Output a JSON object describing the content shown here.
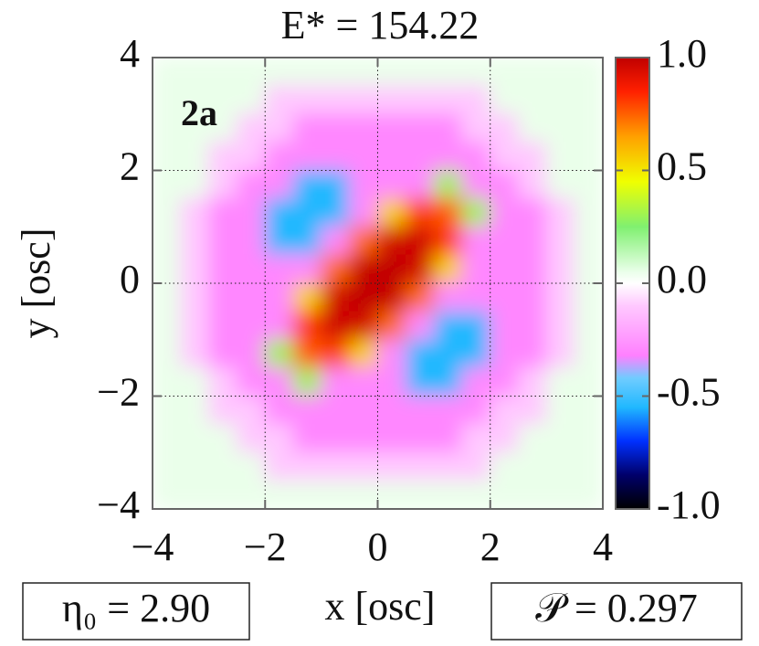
{
  "chart_data": {
    "type": "heatmap",
    "title": "E* = 154.22",
    "panel_label": "2a",
    "xlabel": "x [osc]",
    "ylabel": "y [osc]",
    "annotations": [
      "η₀ = 2.90",
      "𝒫 = 0.297"
    ],
    "xlim": [
      -4,
      4
    ],
    "ylim": [
      -4,
      4
    ],
    "xticks": [
      {
        "value": -4,
        "label": "−4"
      },
      {
        "value": -2,
        "label": "−2"
      },
      0,
      2,
      4
    ],
    "yticks": [
      {
        "value": -4,
        "label": "−4"
      },
      {
        "value": -2,
        "label": "−2"
      },
      0,
      2,
      4
    ],
    "grid": true,
    "clim": [
      -1,
      1
    ],
    "cticks": [
      {
        "value": -1,
        "label": "-1.0"
      },
      {
        "value": -0.5,
        "label": "-0.5"
      },
      {
        "value": 0,
        "label": "0.0"
      },
      {
        "value": 0.5,
        "label": "0.5"
      },
      {
        "value": 1,
        "label": "1.0"
      }
    ],
    "colormap": [
      {
        "value": -1,
        "color": "#000000"
      },
      {
        "value": -0.85,
        "color": "#00006a"
      },
      {
        "value": -0.7,
        "color": "#0030ff"
      },
      {
        "value": -0.55,
        "color": "#20b8ff"
      },
      {
        "value": -0.42,
        "color": "#70ccff"
      },
      {
        "value": -0.32,
        "color": "#ff80ff"
      },
      {
        "value": -0.1,
        "color": "#ffc8ff"
      },
      {
        "value": 0,
        "color": "#ffffff"
      },
      {
        "value": 0.05,
        "color": "#eaffea"
      },
      {
        "value": 0.25,
        "color": "#80f070"
      },
      {
        "value": 0.45,
        "color": "#f0ff00"
      },
      {
        "value": 0.65,
        "color": "#ffa000"
      },
      {
        "value": 0.85,
        "color": "#ff2000"
      },
      {
        "value": 1,
        "color": "#c00000"
      }
    ],
    "x": [
      -3.75,
      -3.25,
      -2.75,
      -2.25,
      -1.75,
      -1.25,
      -0.75,
      -0.25,
      0.25,
      0.75,
      1.25,
      1.75,
      2.25,
      2.75,
      3.25,
      3.75
    ],
    "y": [
      3.75,
      3.25,
      2.75,
      2.25,
      1.75,
      1.25,
      0.75,
      0.25,
      -0.25,
      -0.75,
      -1.25,
      -1.75,
      -2.25,
      -2.75,
      -3.25,
      -3.75
    ],
    "z": [
      [
        0.05,
        0.05,
        0.05,
        0.05,
        0.05,
        0.05,
        0.05,
        0.05,
        0.05,
        0.05,
        0.05,
        0.05,
        0.05,
        0.05,
        0.05,
        0.05
      ],
      [
        0.05,
        0.05,
        0.05,
        0.05,
        -0.1,
        -0.1,
        -0.1,
        -0.1,
        -0.1,
        -0.1,
        -0.1,
        -0.1,
        0.05,
        0.05,
        0.05,
        0.05
      ],
      [
        0.05,
        0.05,
        0.05,
        -0.1,
        -0.1,
        -0.3,
        -0.3,
        -0.3,
        -0.3,
        -0.3,
        -0.3,
        -0.1,
        -0.1,
        0.05,
        0.05,
        0.05
      ],
      [
        0.05,
        0.05,
        -0.1,
        -0.1,
        -0.3,
        -0.3,
        -0.3,
        -0.3,
        -0.3,
        -0.3,
        -0.3,
        -0.3,
        -0.1,
        -0.1,
        0.05,
        0.05
      ],
      [
        0.05,
        0.05,
        -0.1,
        -0.3,
        -0.3,
        -0.55,
        -0.55,
        -0.3,
        -0.3,
        -0.3,
        0.3,
        -0.3,
        -0.3,
        -0.1,
        0.05,
        0.05
      ],
      [
        0.05,
        -0.1,
        -0.3,
        -0.3,
        -0.55,
        -0.55,
        -0.55,
        -0.3,
        0.55,
        0.8,
        0.76,
        0.3,
        -0.3,
        -0.3,
        -0.1,
        0.05
      ],
      [
        0.05,
        -0.1,
        -0.3,
        -0.3,
        -0.55,
        -0.55,
        -0.3,
        0.73,
        0.96,
        0.97,
        0.81,
        -0.3,
        -0.3,
        -0.3,
        -0.1,
        0.05
      ],
      [
        0.05,
        -0.1,
        -0.3,
        -0.3,
        -0.3,
        -0.3,
        0.73,
        0.98,
        1.0,
        0.96,
        0.55,
        -0.3,
        -0.3,
        -0.3,
        -0.1,
        0.05
      ],
      [
        0.05,
        -0.1,
        -0.3,
        -0.3,
        -0.3,
        0.55,
        0.96,
        1.0,
        0.98,
        0.73,
        -0.3,
        -0.3,
        -0.3,
        -0.3,
        -0.1,
        0.05
      ],
      [
        0.05,
        -0.1,
        -0.3,
        -0.3,
        -0.3,
        0.81,
        0.97,
        0.96,
        0.73,
        -0.3,
        -0.55,
        -0.55,
        -0.3,
        -0.3,
        -0.1,
        0.05
      ],
      [
        0.05,
        -0.1,
        -0.3,
        -0.3,
        0.3,
        0.76,
        0.8,
        0.55,
        -0.3,
        -0.55,
        -0.55,
        -0.55,
        -0.3,
        -0.3,
        -0.1,
        0.05
      ],
      [
        0.05,
        0.05,
        -0.1,
        -0.3,
        -0.3,
        0.3,
        -0.3,
        -0.3,
        -0.3,
        -0.55,
        -0.55,
        -0.3,
        -0.3,
        -0.1,
        0.05,
        0.05
      ],
      [
        0.05,
        0.05,
        -0.1,
        -0.1,
        -0.3,
        -0.3,
        -0.3,
        -0.3,
        -0.3,
        -0.3,
        -0.3,
        -0.3,
        -0.1,
        -0.1,
        0.05,
        0.05
      ],
      [
        0.05,
        0.05,
        0.05,
        -0.1,
        -0.1,
        -0.3,
        -0.3,
        -0.3,
        -0.3,
        -0.3,
        -0.3,
        -0.1,
        -0.1,
        0.05,
        0.05,
        0.05
      ],
      [
        0.05,
        0.05,
        0.05,
        0.05,
        -0.1,
        -0.1,
        -0.1,
        -0.1,
        -0.1,
        -0.1,
        -0.1,
        -0.1,
        0.05,
        0.05,
        0.05,
        0.05
      ],
      [
        0.05,
        0.05,
        0.05,
        0.05,
        0.05,
        0.05,
        0.05,
        0.05,
        0.05,
        0.05,
        0.05,
        0.05,
        0.05,
        0.05,
        0.05,
        0.05
      ]
    ]
  }
}
